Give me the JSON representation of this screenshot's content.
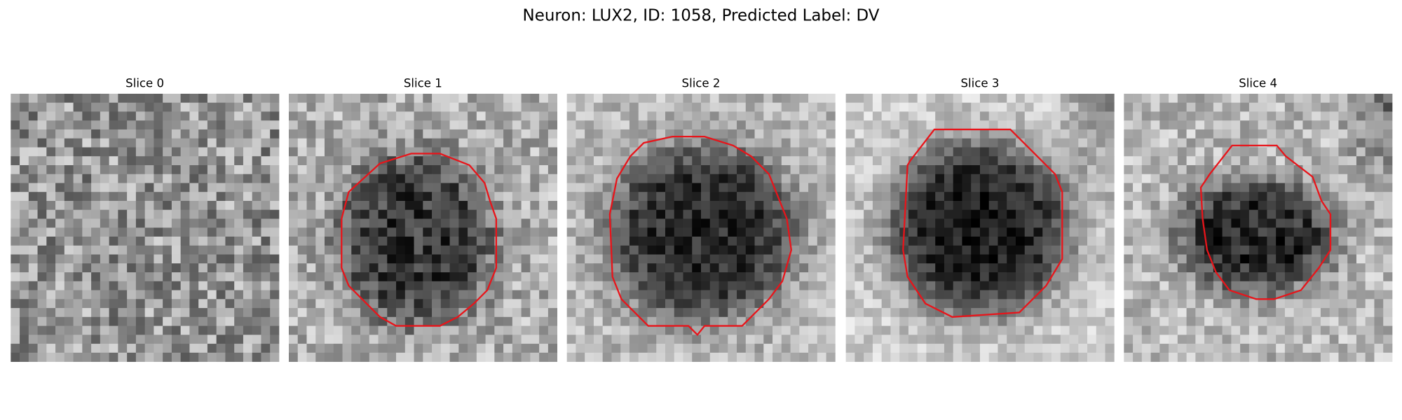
{
  "header": {
    "title": "Neuron: LUX2, ID: 1058, Predicted Label: DV"
  },
  "panels": [
    {
      "title": "Slice 0"
    },
    {
      "title": "Slice 1"
    },
    {
      "title": "Slice 2"
    },
    {
      "title": "Slice 3"
    },
    {
      "title": "Slice 4"
    }
  ]
}
